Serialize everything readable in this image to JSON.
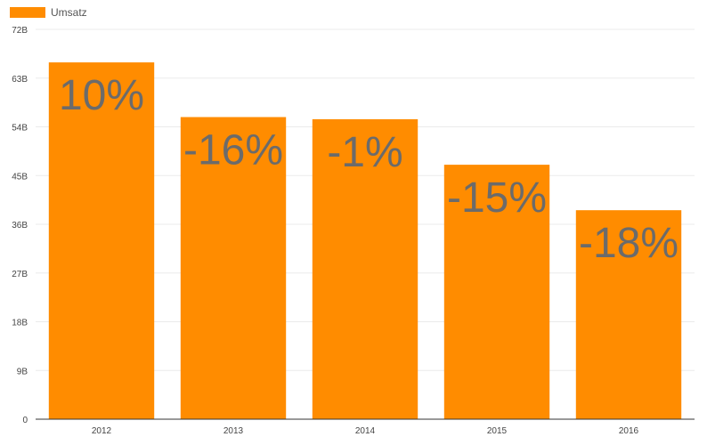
{
  "chart_data": {
    "type": "bar",
    "title": "",
    "xlabel": "",
    "ylabel": "",
    "legend": {
      "position": "top-left",
      "entries": [
        {
          "name": "Umsatz",
          "color": "#FF8C00"
        }
      ]
    },
    "categories": [
      "2012",
      "2013",
      "2014",
      "2015",
      "2016"
    ],
    "series": [
      {
        "name": "Umsatz",
        "color": "#FF8C00",
        "values": [
          65.9,
          55.8,
          55.4,
          47.0,
          38.6
        ],
        "labels": [
          "10%",
          "-16%",
          "-1%",
          "-15%",
          "-18%"
        ]
      }
    ],
    "ylim": [
      0,
      72
    ],
    "yticks": [
      0,
      9,
      18,
      27,
      36,
      45,
      54,
      63,
      72
    ],
    "ytick_labels": [
      "0",
      "9B",
      "18B",
      "27B",
      "36B",
      "45B",
      "54B",
      "63B",
      "72B"
    ],
    "grid": true
  }
}
